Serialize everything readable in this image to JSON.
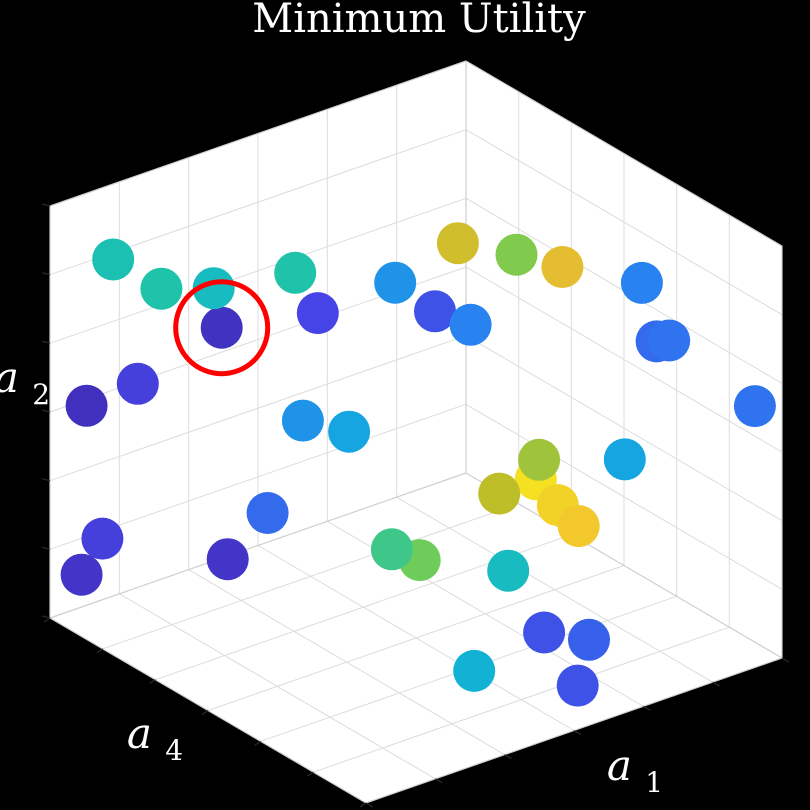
{
  "chart_data": {
    "type": "scatter3d",
    "title": "Minimum Utility",
    "axes": {
      "x_label": "a1",
      "y_label": "a4",
      "z_label": "a2"
    },
    "colormap": "parula",
    "highlight": {
      "point_index": 14,
      "color": "#ff0000",
      "marker": "circle"
    },
    "points": [
      {
        "a1": 0.05,
        "a4": 0.95,
        "a2": 0.52,
        "utility": 0.04
      },
      {
        "a1": 0.12,
        "a4": 0.88,
        "a2": 0.58,
        "utility": 0.1
      },
      {
        "a1": 0.22,
        "a4": 0.74,
        "a2": 0.15,
        "utility": 0.06
      },
      {
        "a1": 0.3,
        "a4": 0.62,
        "a2": 0.48,
        "utility": 0.3
      },
      {
        "a1": 0.38,
        "a4": 0.4,
        "a2": 0.1,
        "utility": 0.62
      },
      {
        "a1": 0.45,
        "a4": 0.52,
        "a2": 0.2,
        "utility": 0.55
      },
      {
        "a1": 0.5,
        "a4": 0.3,
        "a2": 0.28,
        "utility": 0.75
      },
      {
        "a1": 0.55,
        "a4": 0.25,
        "a2": 0.32,
        "utility": 0.95
      },
      {
        "a1": 0.58,
        "a4": 0.22,
        "a2": 0.26,
        "utility": 0.92
      },
      {
        "a1": 0.62,
        "a4": 0.2,
        "a2": 0.22,
        "utility": 0.9
      },
      {
        "a1": 0.6,
        "a4": 0.28,
        "a2": 0.4,
        "utility": 0.7
      },
      {
        "a1": 0.7,
        "a4": 0.15,
        "a2": 0.4,
        "utility": 0.35
      },
      {
        "a1": 0.66,
        "a4": 0.4,
        "a2": 0.2,
        "utility": 0.45
      },
      {
        "a1": 0.42,
        "a4": 0.6,
        "a2": 0.5,
        "utility": 0.35
      },
      {
        "a1": 0.28,
        "a4": 0.8,
        "a2": 0.76,
        "utility": 0.05
      },
      {
        "a1": 0.4,
        "a4": 0.66,
        "a2": 0.8,
        "utility": 0.12
      },
      {
        "a1": 0.5,
        "a4": 0.55,
        "a2": 0.88,
        "utility": 0.3
      },
      {
        "a1": 0.56,
        "a4": 0.5,
        "a2": 0.82,
        "utility": 0.15
      },
      {
        "a1": 0.58,
        "a4": 0.46,
        "a2": 0.98,
        "utility": 0.8
      },
      {
        "a1": 0.66,
        "a4": 0.38,
        "a2": 0.96,
        "utility": 0.65
      },
      {
        "a1": 0.7,
        "a4": 0.3,
        "a2": 0.92,
        "utility": 0.85
      },
      {
        "a1": 0.46,
        "a4": 0.76,
        "a2": 0.96,
        "utility": 0.5
      },
      {
        "a1": 0.36,
        "a4": 0.88,
        "a2": 0.92,
        "utility": 0.45
      },
      {
        "a1": 0.3,
        "a4": 0.96,
        "a2": 0.92,
        "utility": 0.5
      },
      {
        "a1": 0.2,
        "a4": 1.0,
        "a2": 0.96,
        "utility": 0.48
      },
      {
        "a1": 0.62,
        "a4": 0.46,
        "a2": 0.8,
        "utility": 0.25
      },
      {
        "a1": 0.82,
        "a4": 0.2,
        "a2": 0.9,
        "utility": 0.25
      },
      {
        "a1": 0.88,
        "a4": 0.18,
        "a2": 0.78,
        "utility": 0.22
      },
      {
        "a1": 0.84,
        "a4": 0.18,
        "a2": 0.76,
        "utility": 0.2
      },
      {
        "a1": 0.98,
        "a4": 0.05,
        "a2": 0.62,
        "utility": 0.22
      },
      {
        "a1": 0.75,
        "a4": 0.55,
        "a2": 0.05,
        "utility": 0.4
      },
      {
        "a1": 0.8,
        "a4": 0.42,
        "a2": 0.12,
        "utility": 0.15
      },
      {
        "a1": 0.85,
        "a4": 0.35,
        "a2": 0.1,
        "utility": 0.18
      },
      {
        "a1": 0.88,
        "a4": 0.4,
        "a2": 0.02,
        "utility": 0.15
      },
      {
        "a1": 0.1,
        "a4": 0.95,
        "a2": 0.22,
        "utility": 0.1
      },
      {
        "a1": 0.1,
        "a4": 1.0,
        "a2": 0.15,
        "utility": 0.06
      },
      {
        "a1": 0.32,
        "a4": 0.72,
        "a2": 0.3,
        "utility": 0.2
      }
    ]
  }
}
